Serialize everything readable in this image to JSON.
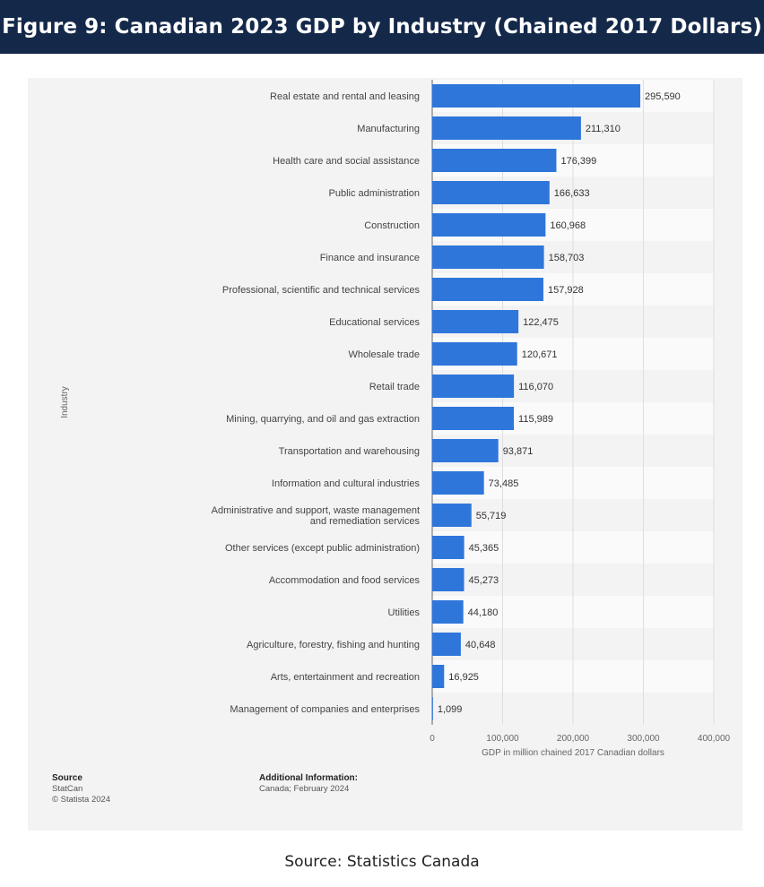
{
  "figure_title": "Figure 9: Canadian 2023 GDP by Industry (Chained 2017 Dollars)",
  "colors": {
    "title_background": "#14294a",
    "bar": "#2f76db",
    "panel_background": "#f3f3f3"
  },
  "chart_data": {
    "type": "bar",
    "orientation": "horizontal",
    "title": "",
    "ylabel": "Industry",
    "xlabel": "GDP in million chained 2017 Canadian dollars",
    "xlim": [
      0,
      400000
    ],
    "grid": true,
    "categories": [
      "Real estate and rental and leasing",
      "Manufacturing",
      "Health care and social assistance",
      "Public administration",
      "Construction",
      "Finance and insurance",
      "Professional, scientific and technical services",
      "Educational services",
      "Wholesale trade",
      "Retail trade",
      "Mining, quarrying, and oil and gas extraction",
      "Transportation and warehousing",
      "Information and cultural industries",
      "Administrative and support, waste management and remediation services",
      "Other services (except public administration)",
      "Accommodation and food services",
      "Utilities",
      "Agriculture, forestry, fishing and hunting",
      "Arts, entertainment and recreation",
      "Management of companies and enterprises"
    ],
    "category_lines": [
      [
        "Real estate and rental and leasing"
      ],
      [
        "Manufacturing"
      ],
      [
        "Health care and social assistance"
      ],
      [
        "Public administration"
      ],
      [
        "Construction"
      ],
      [
        "Finance and insurance"
      ],
      [
        "Professional, scientific and technical services"
      ],
      [
        "Educational services"
      ],
      [
        "Wholesale trade"
      ],
      [
        "Retail trade"
      ],
      [
        "Mining, quarrying, and oil and gas extraction"
      ],
      [
        "Transportation and warehousing"
      ],
      [
        "Information and cultural industries"
      ],
      [
        "Administrative and support, waste management",
        "and remediation services"
      ],
      [
        "Other services (except public administration)"
      ],
      [
        "Accommodation and food services"
      ],
      [
        "Utilities"
      ],
      [
        "Agriculture, forestry, fishing and hunting"
      ],
      [
        "Arts, entertainment and recreation"
      ],
      [
        "Management of companies and enterprises"
      ]
    ],
    "values": [
      295590,
      211310,
      176399,
      166633,
      160968,
      158703,
      157928,
      122475,
      120671,
      116070,
      115989,
      93871,
      73485,
      55719,
      45365,
      45273,
      44180,
      40648,
      16925,
      1099
    ],
    "value_labels": [
      "295,590",
      "211,310",
      "176,399",
      "166,633",
      "160,968",
      "158,703",
      "157,928",
      "122,475",
      "120,671",
      "116,070",
      "115,989",
      "93,871",
      "73,485",
      "55,719",
      "45,365",
      "45,273",
      "44,180",
      "40,648",
      "16,925",
      "1,099"
    ],
    "x_ticks": [
      0,
      100000,
      200000,
      300000,
      400000
    ],
    "x_tick_labels": [
      "0",
      "100,000",
      "200,000",
      "300,000",
      "400,000"
    ]
  },
  "source_block": {
    "heading": "Source",
    "line1": "StatCan",
    "line2": "© Statista 2024"
  },
  "additional_info": {
    "heading": "Additional Information:",
    "line1": "Canada; February 2024"
  },
  "footer_caption": "Source: Statistics Canada"
}
